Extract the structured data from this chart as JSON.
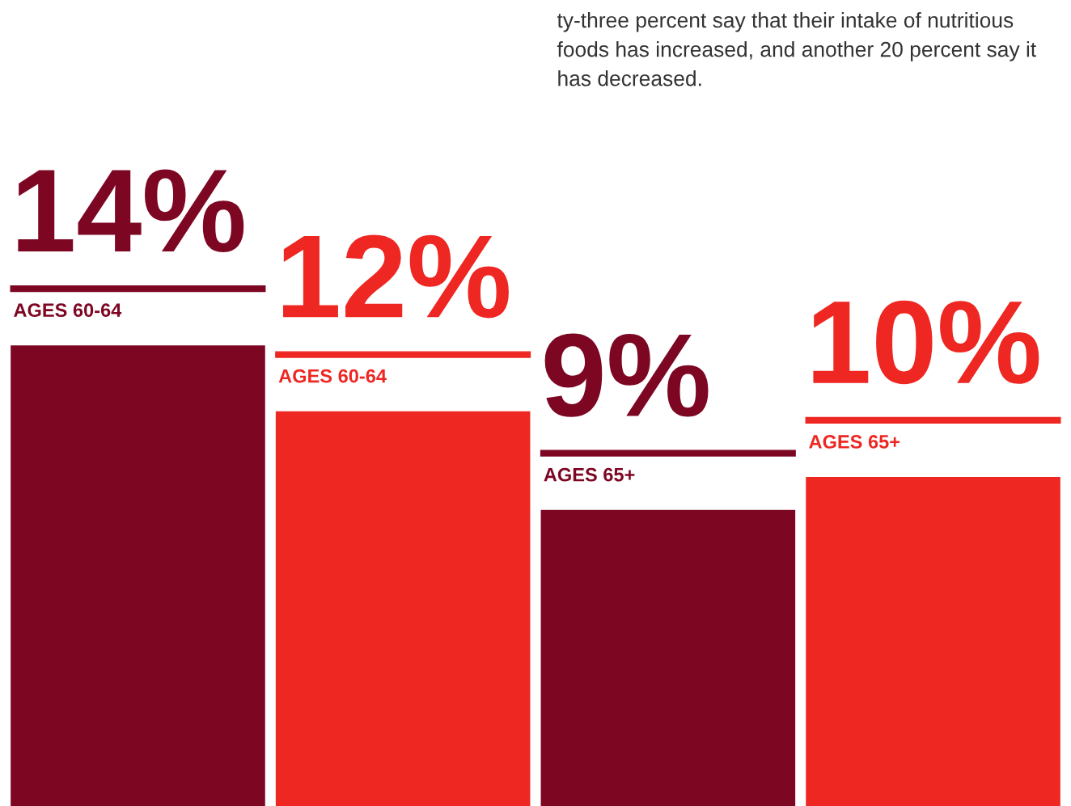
{
  "chart_data": {
    "type": "bar",
    "categories": [
      "AGES 60-64",
      "AGES 60-64",
      "AGES 65+",
      "AGES 65+"
    ],
    "values": [
      14,
      12,
      9,
      10
    ],
    "colors": [
      "#7d0723",
      "#ee2722",
      "#7d0723",
      "#ee2722"
    ],
    "value_labels": [
      "14%",
      "12%",
      "9%",
      "10%"
    ],
    "annotations": [
      "ty-three percent say that their intake of nutritious foods has increased, and another 20 percent say it has decreased."
    ]
  }
}
